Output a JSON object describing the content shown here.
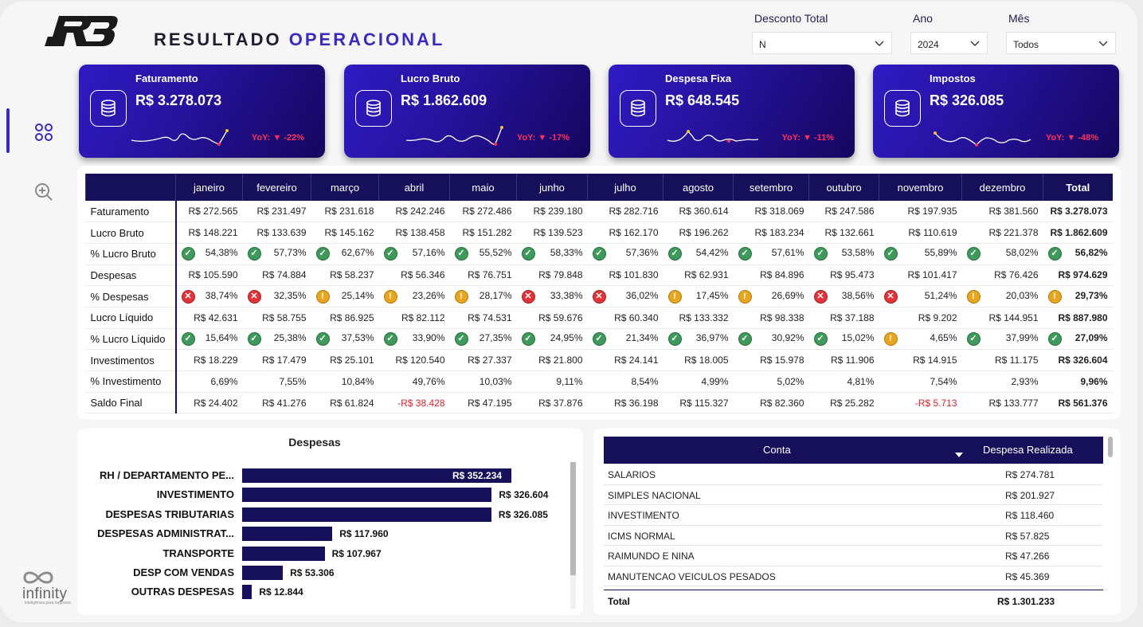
{
  "header": {
    "logo_text": "RB",
    "title_part1": "RESULTADO",
    "title_part2": "OPERACIONAL"
  },
  "filters": [
    {
      "label": "Desconto Total",
      "value": "N"
    },
    {
      "label": "Ano",
      "value": "2024"
    },
    {
      "label": "Mês",
      "value": "Todos"
    }
  ],
  "kpis": [
    {
      "label": "Faturamento",
      "value": "R$ 3.278.073",
      "yoy": "YoY: ▼ -22%"
    },
    {
      "label": "Lucro Bruto",
      "value": "R$ 1.862.609",
      "yoy": "YoY: ▼ -17%"
    },
    {
      "label": "Despesa Fixa",
      "value": "R$ 648.545",
      "yoy": "YoY: ▼ -11%"
    },
    {
      "label": "Impostos",
      "value": "R$ 326.085",
      "yoy": "YoY: ▼ -48%"
    }
  ],
  "matrix": {
    "columns": [
      "janeiro",
      "fevereiro",
      "março",
      "abril",
      "maio",
      "junho",
      "julho",
      "agosto",
      "setembro",
      "outubro",
      "novembro",
      "dezembro",
      "Total"
    ],
    "rows": [
      {
        "label": "Faturamento",
        "cells": [
          "R$ 272.565",
          "R$ 231.497",
          "R$ 231.618",
          "R$ 242.246",
          "R$ 272.486",
          "R$ 239.180",
          "R$ 282.716",
          "R$ 360.614",
          "R$ 318.069",
          "R$ 247.586",
          "R$ 197.935",
          "R$ 381.560",
          "R$ 3.278.073"
        ]
      },
      {
        "label": "Lucro Bruto",
        "cells": [
          "R$ 148.221",
          "R$ 133.639",
          "R$ 145.162",
          "R$ 138.458",
          "R$ 151.282",
          "R$ 139.523",
          "R$ 162.170",
          "R$ 196.262",
          "R$ 183.234",
          "R$ 132.661",
          "R$ 110.619",
          "R$ 221.378",
          "R$ 1.862.609"
        ]
      },
      {
        "label": "% Lucro Bruto",
        "cells": [
          "54,38%",
          "57,73%",
          "62,67%",
          "57,16%",
          "55,52%",
          "58,33%",
          "57,36%",
          "54,42%",
          "57,61%",
          "53,58%",
          "55,89%",
          "58,02%",
          "56,82%"
        ],
        "status": [
          "ok",
          "ok",
          "ok",
          "ok",
          "ok",
          "ok",
          "ok",
          "ok",
          "ok",
          "ok",
          "ok",
          "ok",
          "ok"
        ]
      },
      {
        "label": "Despesas",
        "cells": [
          "R$ 105.590",
          "R$ 74.884",
          "R$ 58.237",
          "R$ 56.346",
          "R$ 76.751",
          "R$ 79.848",
          "R$ 101.830",
          "R$ 62.931",
          "R$ 84.896",
          "R$ 95.473",
          "R$ 101.417",
          "R$ 76.426",
          "R$ 974.629"
        ]
      },
      {
        "label": "% Despesas",
        "cells": [
          "38,74%",
          "32,35%",
          "25,14%",
          "23,26%",
          "28,17%",
          "33,38%",
          "36,02%",
          "17,45%",
          "26,69%",
          "38,56%",
          "51,24%",
          "20,03%",
          "29,73%"
        ],
        "status": [
          "bad",
          "bad",
          "warn",
          "warn",
          "warn",
          "bad",
          "bad",
          "warn",
          "warn",
          "bad",
          "bad",
          "warn",
          "warn"
        ]
      },
      {
        "label": "Lucro Líquido",
        "cells": [
          "R$ 42.631",
          "R$ 58.755",
          "R$ 86.925",
          "R$ 82.112",
          "R$ 74.531",
          "R$ 59.676",
          "R$ 60.340",
          "R$ 133.332",
          "R$ 98.338",
          "R$ 37.188",
          "R$ 9.202",
          "R$ 144.951",
          "R$ 887.980"
        ]
      },
      {
        "label": "% Lucro Líquido",
        "cells": [
          "15,64%",
          "25,38%",
          "37,53%",
          "33,90%",
          "27,35%",
          "24,95%",
          "21,34%",
          "36,97%",
          "30,92%",
          "15,02%",
          "4,65%",
          "37,99%",
          "27,09%"
        ],
        "status": [
          "ok",
          "ok",
          "ok",
          "ok",
          "ok",
          "ok",
          "ok",
          "ok",
          "ok",
          "ok",
          "warn",
          "ok",
          "ok"
        ]
      },
      {
        "label": "Investimentos",
        "cells": [
          "R$ 18.229",
          "R$ 17.479",
          "R$ 25.101",
          "R$ 120.540",
          "R$ 27.337",
          "R$ 21.800",
          "R$ 24.141",
          "R$ 18.005",
          "R$ 15.978",
          "R$ 11.906",
          "R$ 14.915",
          "R$ 11.175",
          "R$ 326.604"
        ]
      },
      {
        "label": "% Investimento",
        "cells": [
          "6,69%",
          "7,55%",
          "10,84%",
          "49,76%",
          "10,03%",
          "9,11%",
          "8,54%",
          "4,99%",
          "5,02%",
          "4,81%",
          "7,54%",
          "2,93%",
          "9,96%"
        ]
      },
      {
        "label": "Saldo Final",
        "cells": [
          "R$ 24.402",
          "R$ 41.276",
          "R$ 61.824",
          "-R$ 38.428",
          "R$ 47.195",
          "R$ 37.876",
          "R$ 36.198",
          "R$ 115.327",
          "R$ 82.360",
          "R$ 25.282",
          "-R$ 5.713",
          "R$ 133.777",
          "R$ 561.376"
        ]
      }
    ]
  },
  "despesas_chart": {
    "title": "Despesas",
    "chart_data": {
      "type": "bar",
      "orientation": "horizontal",
      "categories": [
        "RH / DEPARTAMENTO PE...",
        "INVESTIMENTO",
        "DESPESAS TRIBUTARIAS",
        "DESPESAS ADMINISTRAT...",
        "TRANSPORTE",
        "DESP COM VENDAS",
        "OUTRAS DESPESAS"
      ],
      "values": [
        352234,
        326604,
        326085,
        117960,
        107967,
        53306,
        12844
      ],
      "value_labels": [
        "R$ 352.234",
        "R$ 326.604",
        "R$ 326.085",
        "R$ 117.960",
        "R$ 107.967",
        "R$ 53.306",
        "R$ 12.844"
      ]
    }
  },
  "despesa_table": {
    "col_conta": "Conta",
    "col_valor": "Despesa Realizada",
    "rows": [
      {
        "conta": "SALARIOS",
        "valor": "R$ 274.781"
      },
      {
        "conta": "SIMPLES NACIONAL",
        "valor": "R$ 201.927"
      },
      {
        "conta": "INVESTIMENTO",
        "valor": "R$ 118.460"
      },
      {
        "conta": "ICMS NORMAL",
        "valor": "R$ 57.825"
      },
      {
        "conta": "RAIMUNDO E NINA",
        "valor": "R$ 47.266"
      },
      {
        "conta": "MANUTENCAO VEICULOS PESADOS",
        "valor": "R$ 45.369"
      }
    ],
    "total_label": "Total",
    "total_value": "R$ 1.301.233"
  },
  "brand": {
    "name": "infinity",
    "tagline": "inteligência para negócios"
  }
}
